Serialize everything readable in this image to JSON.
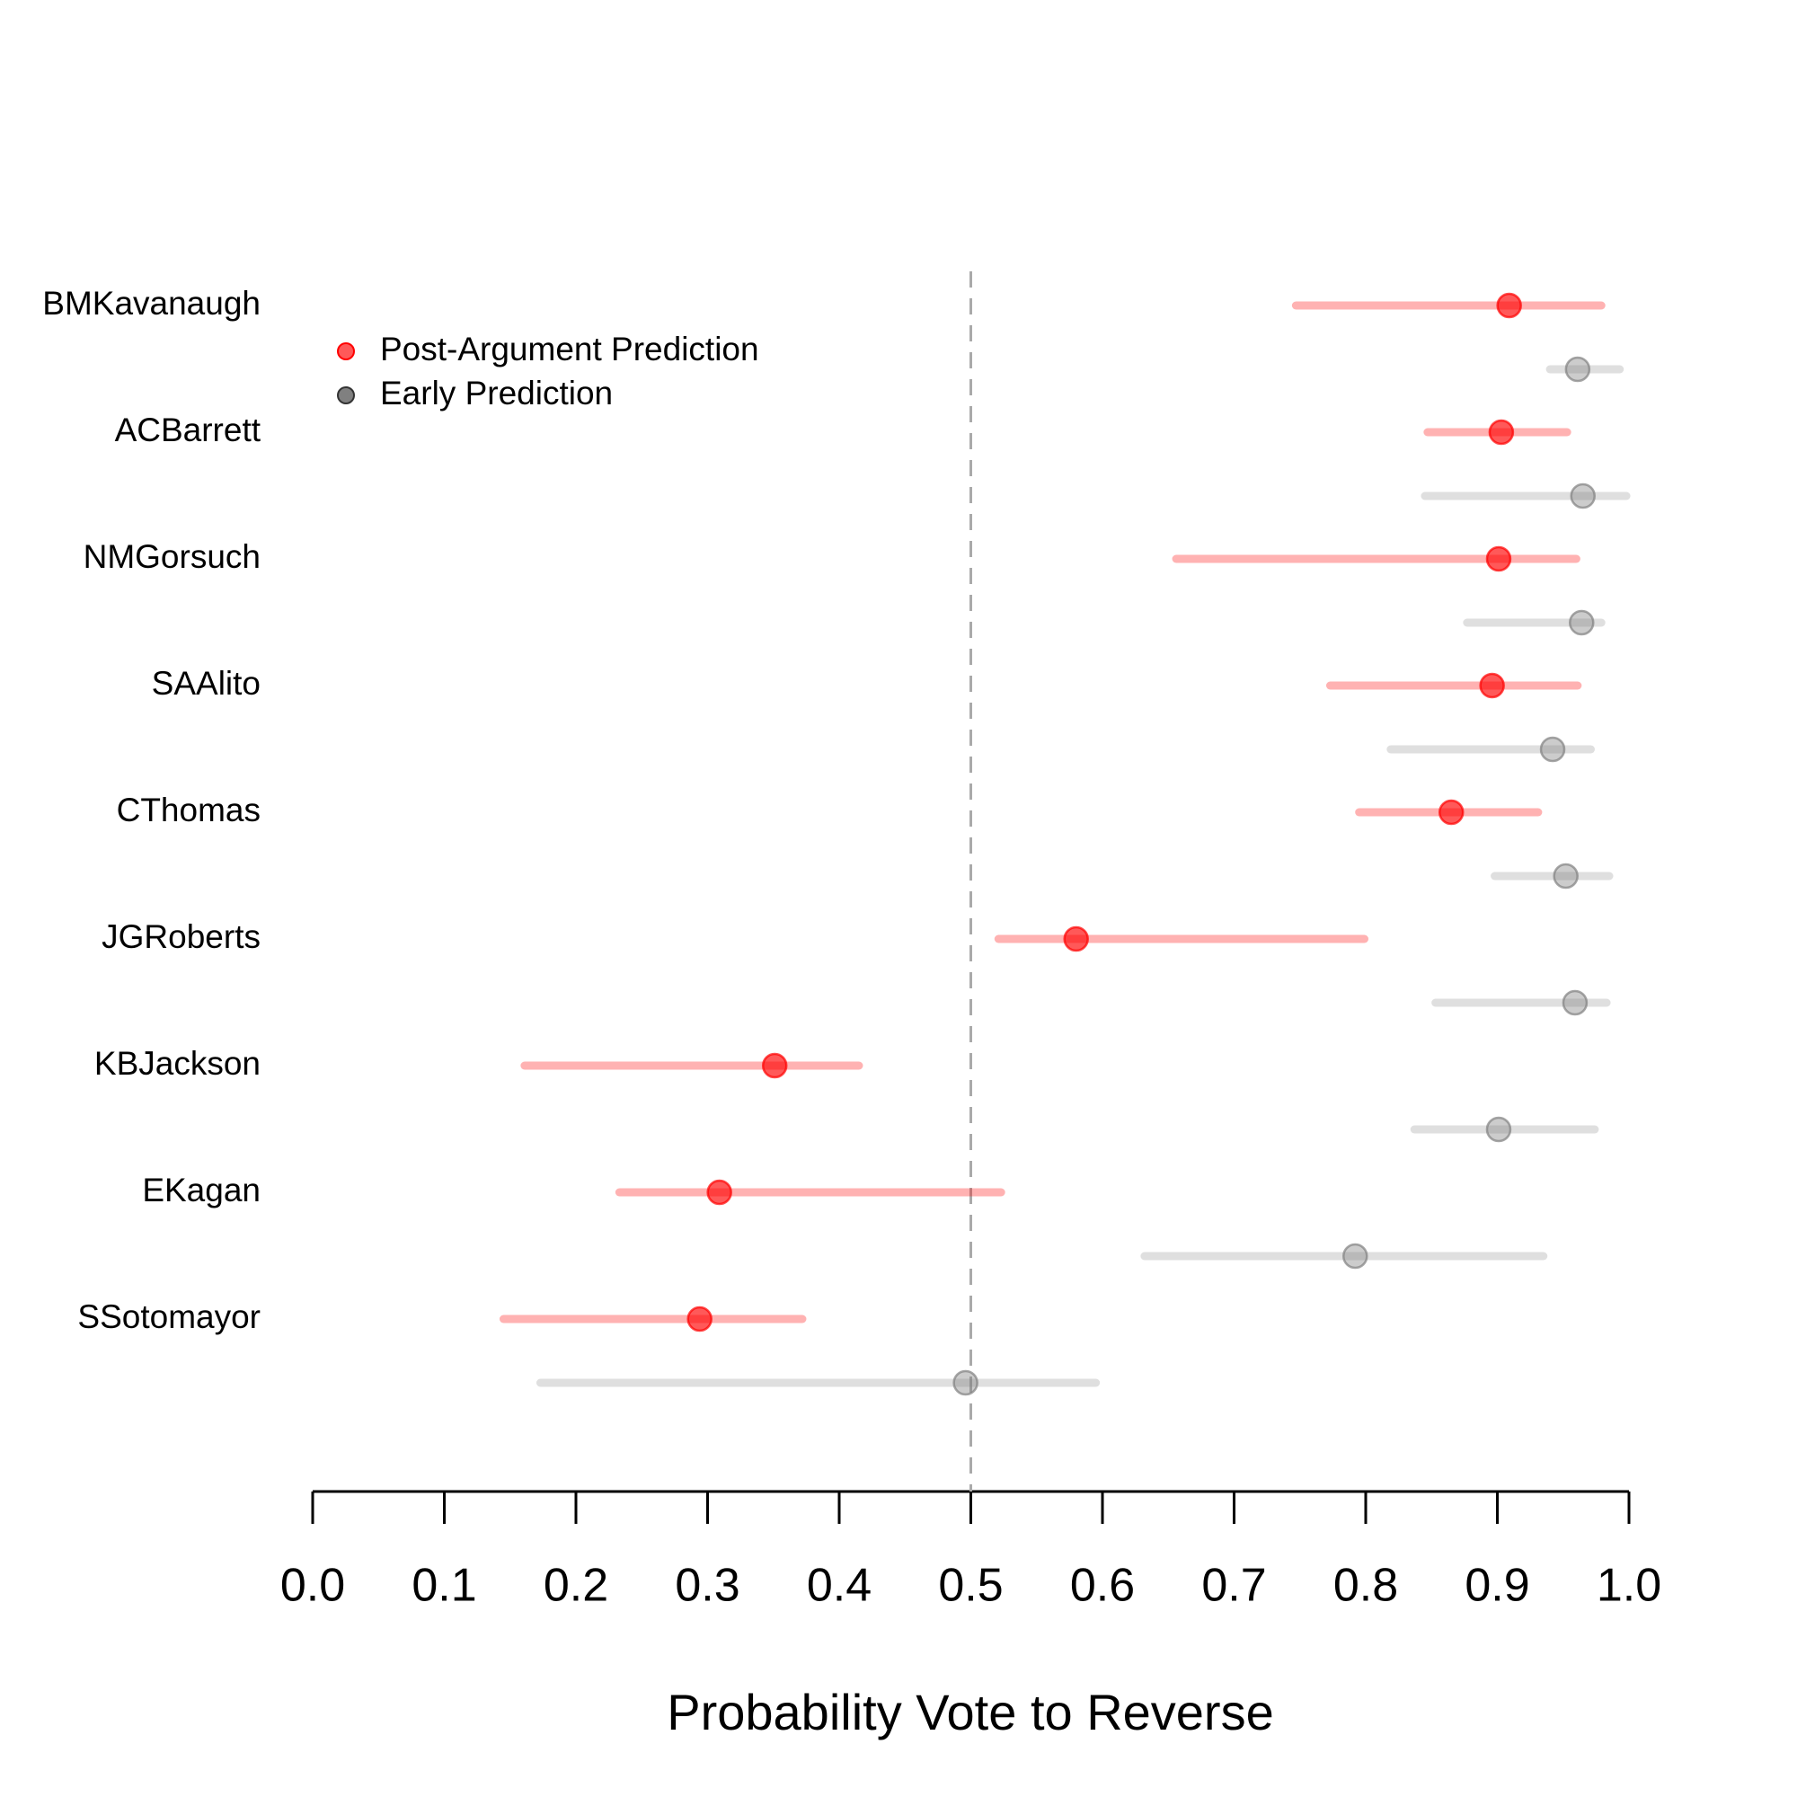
{
  "chart_data": {
    "type": "interval",
    "x_label": "Probability Vote to Reverse",
    "categories": [
      "BMKavanaugh",
      "ACBarrett",
      "NMGorsuch",
      "SAAlito",
      "CThomas",
      "JGRoberts",
      "KBJackson",
      "EKagan",
      "SSotomayor"
    ],
    "series": [
      {
        "name": "Post-Argument Prediction",
        "color": "#ff0000",
        "values": [
          0.909,
          0.903,
          0.901,
          0.896,
          0.865,
          0.58,
          0.351,
          0.309,
          0.294
        ],
        "lower": [
          0.747,
          0.847,
          0.656,
          0.773,
          0.795,
          0.521,
          0.161,
          0.233,
          0.145
        ],
        "upper": [
          0.979,
          0.953,
          0.96,
          0.961,
          0.931,
          0.799,
          0.415,
          0.523,
          0.372
        ]
      },
      {
        "name": "Early Prediction",
        "color": "#808080",
        "values": [
          0.961,
          0.965,
          0.964,
          0.942,
          0.952,
          0.959,
          0.901,
          0.792,
          0.496
        ],
        "lower": [
          0.94,
          0.845,
          0.877,
          0.819,
          0.898,
          0.853,
          0.837,
          0.632,
          0.173
        ],
        "upper": [
          0.993,
          0.998,
          0.979,
          0.971,
          0.985,
          0.983,
          0.974,
          0.935,
          0.595
        ]
      }
    ],
    "xlim": [
      0,
      1
    ],
    "xticks": [
      {
        "value": 0,
        "label": "0.0"
      },
      0.1,
      0.2,
      0.3,
      0.4,
      0.5,
      0.6,
      0.7,
      0.8,
      0.9,
      {
        "value": 1,
        "label": "1.0"
      }
    ],
    "reference_line": 0.5,
    "legend_position": "top-left"
  }
}
